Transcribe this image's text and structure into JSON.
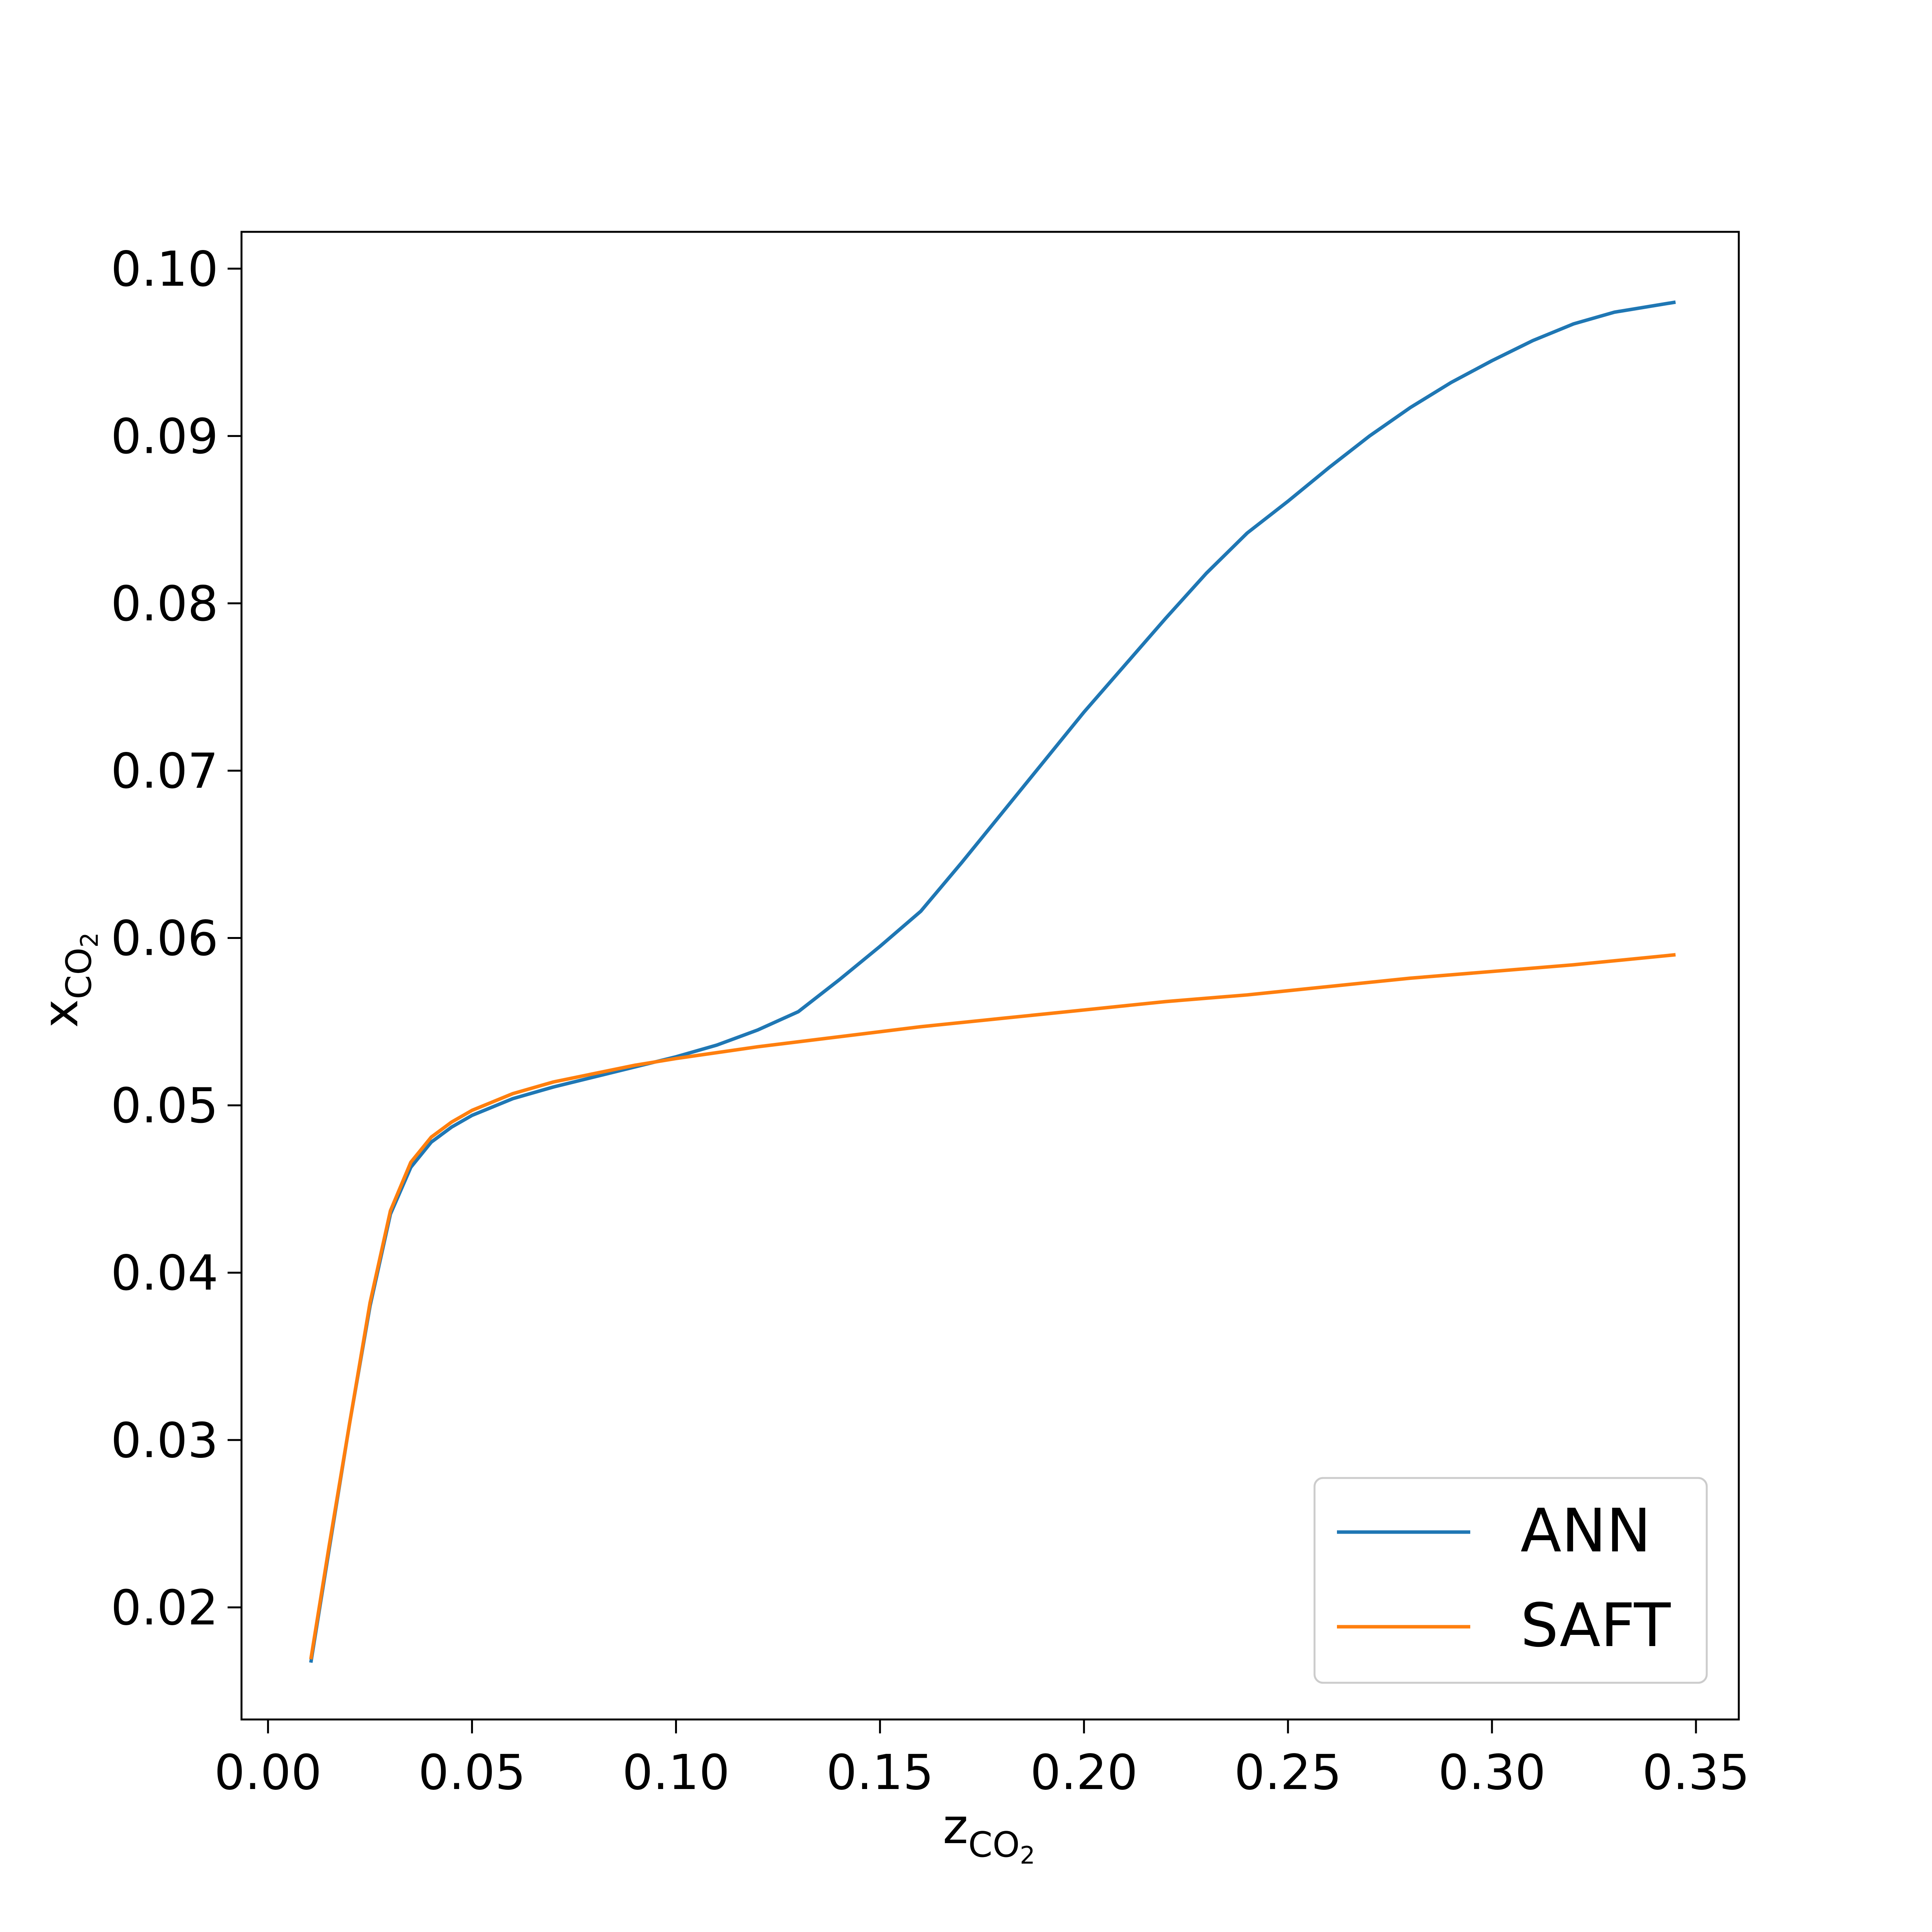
{
  "chart_data": {
    "type": "line",
    "title": "",
    "xlabel": {
      "main": "z",
      "sub": "CO",
      "subsub": "2"
    },
    "ylabel": {
      "main": "x",
      "sub": "CO",
      "subsub": "2"
    },
    "xlim": [
      -0.0065,
      0.3605
    ],
    "ylim": [
      0.0133,
      0.1022
    ],
    "xticks": [
      0.0,
      0.05,
      0.1,
      0.15,
      0.2,
      0.25,
      0.3,
      0.35
    ],
    "xtick_labels": [
      "0.00",
      "0.05",
      "0.10",
      "0.15",
      "0.20",
      "0.25",
      "0.30",
      "0.35"
    ],
    "yticks": [
      0.02,
      0.03,
      0.04,
      0.05,
      0.06,
      0.07,
      0.08,
      0.09,
      0.1
    ],
    "ytick_labels": [
      "0.02",
      "0.03",
      "0.04",
      "0.05",
      "0.06",
      "0.07",
      "0.08",
      "0.09",
      "0.10"
    ],
    "grid": false,
    "legend_position": "lower-right",
    "series": [
      {
        "name": "ANN",
        "color": "#1f77b4",
        "x": [
          0.0105,
          0.015,
          0.02,
          0.025,
          0.03,
          0.035,
          0.04,
          0.045,
          0.05,
          0.06,
          0.07,
          0.08,
          0.09,
          0.1,
          0.11,
          0.12,
          0.13,
          0.14,
          0.15,
          0.16,
          0.17,
          0.18,
          0.19,
          0.2,
          0.21,
          0.22,
          0.23,
          0.24,
          0.25,
          0.26,
          0.27,
          0.28,
          0.29,
          0.3,
          0.31,
          0.32,
          0.33,
          0.345
        ],
        "y": [
          0.0167,
          0.0235,
          0.031,
          0.038,
          0.0435,
          0.0463,
          0.0478,
          0.0487,
          0.0494,
          0.0504,
          0.0511,
          0.0517,
          0.0523,
          0.0529,
          0.0536,
          0.0545,
          0.0556,
          0.0575,
          0.0595,
          0.0616,
          0.0645,
          0.0675,
          0.0705,
          0.0735,
          0.0763,
          0.0791,
          0.0818,
          0.0842,
          0.0861,
          0.0881,
          0.09,
          0.0917,
          0.0932,
          0.0945,
          0.0957,
          0.0967,
          0.0974,
          0.098
        ]
      },
      {
        "name": "SAFT",
        "color": "#ff7f0e",
        "x": [
          0.0105,
          0.015,
          0.02,
          0.025,
          0.03,
          0.035,
          0.04,
          0.045,
          0.05,
          0.06,
          0.07,
          0.08,
          0.09,
          0.1,
          0.12,
          0.14,
          0.16,
          0.18,
          0.2,
          0.22,
          0.24,
          0.26,
          0.28,
          0.3,
          0.32,
          0.345
        ],
        "y": [
          0.0169,
          0.0237,
          0.031,
          0.0382,
          0.0437,
          0.0466,
          0.0481,
          0.049,
          0.0497,
          0.0507,
          0.0514,
          0.0519,
          0.0524,
          0.0528,
          0.0535,
          0.0541,
          0.0547,
          0.0552,
          0.0557,
          0.0562,
          0.0566,
          0.0571,
          0.0576,
          0.058,
          0.0584,
          0.059
        ]
      }
    ]
  }
}
